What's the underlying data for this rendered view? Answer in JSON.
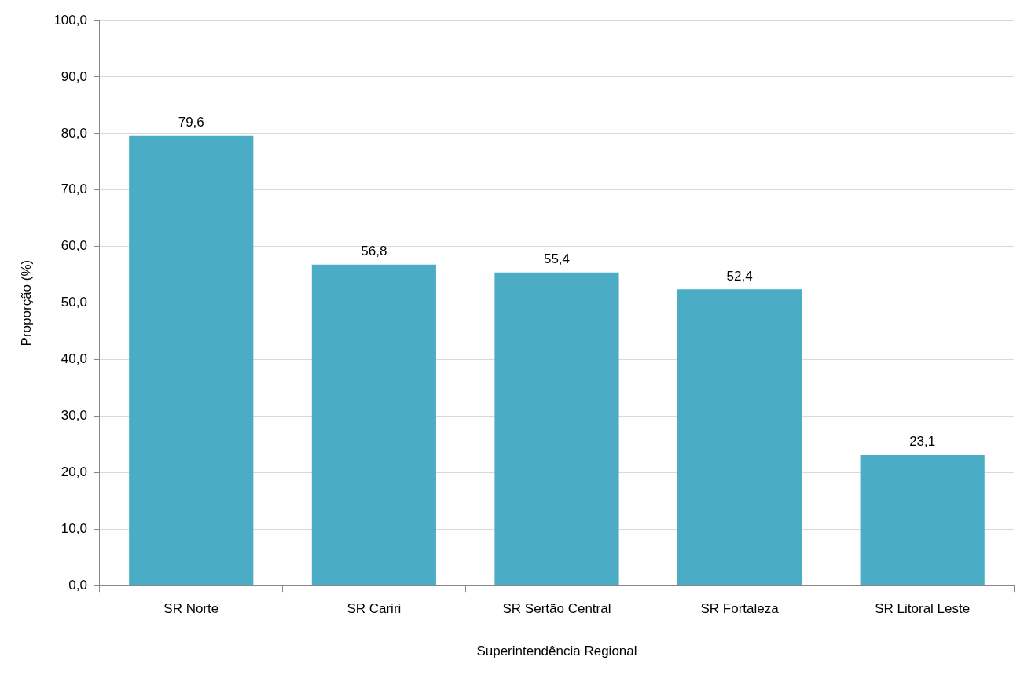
{
  "chart_data": {
    "type": "bar",
    "xlabel": "Superintendência Regional",
    "ylabel": "Proporção (%)",
    "categories": [
      "SR Norte",
      "SR Cariri",
      "SR Sertão Central",
      "SR Fortaleza",
      "SR Litoral Leste"
    ],
    "values": [
      79.6,
      56.8,
      55.4,
      52.4,
      23.1
    ],
    "value_labels": [
      "79,6",
      "56,8",
      "55,4",
      "52,4",
      "23,1"
    ],
    "color": "#4bacc6",
    "ylim": [
      0,
      100
    ],
    "yticks": [
      {
        "value": 0,
        "label": "0,0"
      },
      {
        "value": 10,
        "label": "10,0"
      },
      {
        "value": 20,
        "label": "20,0"
      },
      {
        "value": 30,
        "label": "30,0"
      },
      {
        "value": 40,
        "label": "40,0"
      },
      {
        "value": 50,
        "label": "50,0"
      },
      {
        "value": 60,
        "label": "60,0"
      },
      {
        "value": 70,
        "label": "70,0"
      },
      {
        "value": 80,
        "label": "80,0"
      },
      {
        "value": 90,
        "label": "90,0"
      },
      {
        "value": 100,
        "label": "100,0"
      }
    ],
    "grid": "y",
    "legend": false
  }
}
